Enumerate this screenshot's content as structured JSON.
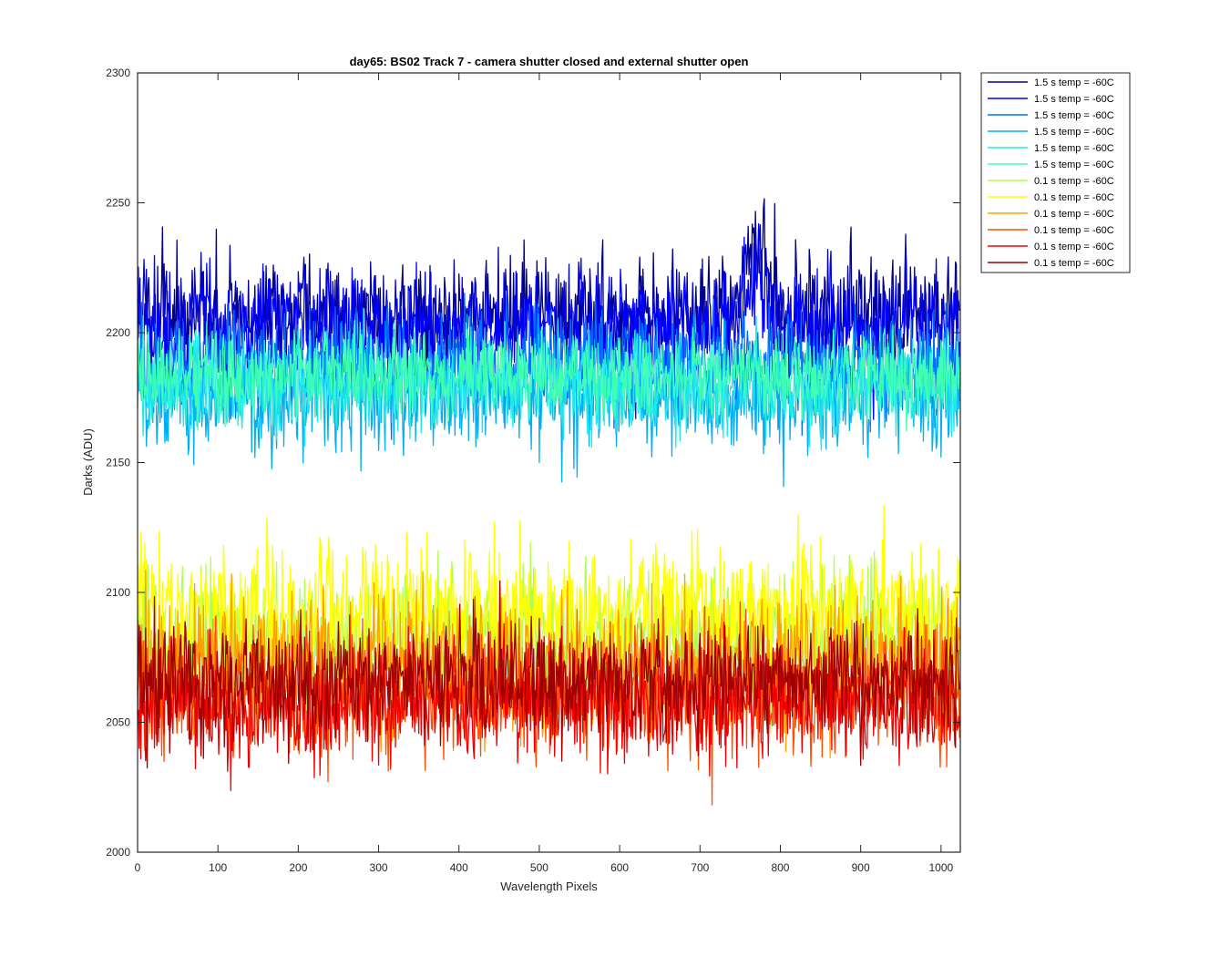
{
  "chart_data": {
    "type": "line",
    "title": "day65: BS02  Track 7 - camera shutter closed and external shutter open",
    "xlabel": "Wavelength Pixels",
    "ylabel": "Darks (ADU)",
    "xlim": [
      0,
      1024
    ],
    "ylim": [
      2000,
      2300
    ],
    "xticks": [
      0,
      100,
      200,
      300,
      400,
      500,
      600,
      700,
      800,
      900,
      1000
    ],
    "yticks": [
      2000,
      2050,
      2100,
      2150,
      2200,
      2250,
      2300
    ],
    "grid": false,
    "legend_location": "outside-top-right",
    "series": [
      {
        "name": "1.5 s temp = -60C",
        "color": "#00008f",
        "mean": 2206,
        "noise": 11,
        "bump": {
          "center": 770,
          "width": 28,
          "height": 28
        }
      },
      {
        "name": "1.5 s temp = -60C",
        "color": "#0000ff",
        "mean": 2203,
        "noise": 11,
        "bump": {
          "center": 770,
          "width": 28,
          "height": 18
        }
      },
      {
        "name": "1.5 s temp = -60C",
        "color": "#0070ff",
        "mean": 2188,
        "noise": 10
      },
      {
        "name": "1.5 s temp = -60C",
        "color": "#00b0f0",
        "mean": 2176,
        "noise": 11
      },
      {
        "name": "1.5 s temp = -60C",
        "color": "#20e8e8",
        "mean": 2180,
        "noise": 9
      },
      {
        "name": "1.5 s temp = -60C",
        "color": "#40ffb0",
        "mean": 2184,
        "noise": 8
      },
      {
        "name": "0.1 s temp = -60C",
        "color": "#b0ff50",
        "mean": 2082,
        "noise": 13
      },
      {
        "name": "0.1 s temp = -60C",
        "color": "#ffff00",
        "mean": 2092,
        "noise": 13
      },
      {
        "name": "0.1 s temp = -60C",
        "color": "#ffa000",
        "mean": 2072,
        "noise": 13
      },
      {
        "name": "0.1 s temp = -60C",
        "color": "#ff5000",
        "mean": 2062,
        "noise": 12
      },
      {
        "name": "0.1 s temp = -60C",
        "color": "#f00000",
        "mean": 2058,
        "noise": 11
      },
      {
        "name": "0.1 s temp = -60C",
        "color": "#9c0000",
        "mean": 2066,
        "noise": 11
      }
    ]
  }
}
